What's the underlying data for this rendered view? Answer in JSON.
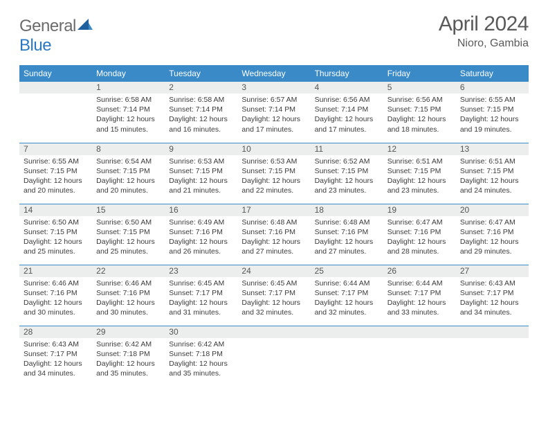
{
  "brand": {
    "word1": "General",
    "word2": "Blue"
  },
  "title": "April 2024",
  "location": "Nioro, Gambia",
  "colors": {
    "header_bg": "#3a8ac8",
    "header_text": "#ffffff",
    "daybar_bg": "#eceded",
    "row_divider": "#3a8ac8",
    "logo_gray": "#6b6b6b",
    "logo_blue": "#2b78c2",
    "title_gray": "#5a5a5a"
  },
  "weekdays": [
    "Sunday",
    "Monday",
    "Tuesday",
    "Wednesday",
    "Thursday",
    "Friday",
    "Saturday"
  ],
  "weeks": [
    [
      null,
      {
        "n": "1",
        "sr": "6:58 AM",
        "ss": "7:14 PM",
        "dl": "12 hours and 15 minutes."
      },
      {
        "n": "2",
        "sr": "6:58 AM",
        "ss": "7:14 PM",
        "dl": "12 hours and 16 minutes."
      },
      {
        "n": "3",
        "sr": "6:57 AM",
        "ss": "7:14 PM",
        "dl": "12 hours and 17 minutes."
      },
      {
        "n": "4",
        "sr": "6:56 AM",
        "ss": "7:14 PM",
        "dl": "12 hours and 17 minutes."
      },
      {
        "n": "5",
        "sr": "6:56 AM",
        "ss": "7:15 PM",
        "dl": "12 hours and 18 minutes."
      },
      {
        "n": "6",
        "sr": "6:55 AM",
        "ss": "7:15 PM",
        "dl": "12 hours and 19 minutes."
      }
    ],
    [
      {
        "n": "7",
        "sr": "6:55 AM",
        "ss": "7:15 PM",
        "dl": "12 hours and 20 minutes."
      },
      {
        "n": "8",
        "sr": "6:54 AM",
        "ss": "7:15 PM",
        "dl": "12 hours and 20 minutes."
      },
      {
        "n": "9",
        "sr": "6:53 AM",
        "ss": "7:15 PM",
        "dl": "12 hours and 21 minutes."
      },
      {
        "n": "10",
        "sr": "6:53 AM",
        "ss": "7:15 PM",
        "dl": "12 hours and 22 minutes."
      },
      {
        "n": "11",
        "sr": "6:52 AM",
        "ss": "7:15 PM",
        "dl": "12 hours and 23 minutes."
      },
      {
        "n": "12",
        "sr": "6:51 AM",
        "ss": "7:15 PM",
        "dl": "12 hours and 23 minutes."
      },
      {
        "n": "13",
        "sr": "6:51 AM",
        "ss": "7:15 PM",
        "dl": "12 hours and 24 minutes."
      }
    ],
    [
      {
        "n": "14",
        "sr": "6:50 AM",
        "ss": "7:15 PM",
        "dl": "12 hours and 25 minutes."
      },
      {
        "n": "15",
        "sr": "6:50 AM",
        "ss": "7:15 PM",
        "dl": "12 hours and 25 minutes."
      },
      {
        "n": "16",
        "sr": "6:49 AM",
        "ss": "7:16 PM",
        "dl": "12 hours and 26 minutes."
      },
      {
        "n": "17",
        "sr": "6:48 AM",
        "ss": "7:16 PM",
        "dl": "12 hours and 27 minutes."
      },
      {
        "n": "18",
        "sr": "6:48 AM",
        "ss": "7:16 PM",
        "dl": "12 hours and 27 minutes."
      },
      {
        "n": "19",
        "sr": "6:47 AM",
        "ss": "7:16 PM",
        "dl": "12 hours and 28 minutes."
      },
      {
        "n": "20",
        "sr": "6:47 AM",
        "ss": "7:16 PM",
        "dl": "12 hours and 29 minutes."
      }
    ],
    [
      {
        "n": "21",
        "sr": "6:46 AM",
        "ss": "7:16 PM",
        "dl": "12 hours and 30 minutes."
      },
      {
        "n": "22",
        "sr": "6:46 AM",
        "ss": "7:16 PM",
        "dl": "12 hours and 30 minutes."
      },
      {
        "n": "23",
        "sr": "6:45 AM",
        "ss": "7:17 PM",
        "dl": "12 hours and 31 minutes."
      },
      {
        "n": "24",
        "sr": "6:45 AM",
        "ss": "7:17 PM",
        "dl": "12 hours and 32 minutes."
      },
      {
        "n": "25",
        "sr": "6:44 AM",
        "ss": "7:17 PM",
        "dl": "12 hours and 32 minutes."
      },
      {
        "n": "26",
        "sr": "6:44 AM",
        "ss": "7:17 PM",
        "dl": "12 hours and 33 minutes."
      },
      {
        "n": "27",
        "sr": "6:43 AM",
        "ss": "7:17 PM",
        "dl": "12 hours and 34 minutes."
      }
    ],
    [
      {
        "n": "28",
        "sr": "6:43 AM",
        "ss": "7:17 PM",
        "dl": "12 hours and 34 minutes."
      },
      {
        "n": "29",
        "sr": "6:42 AM",
        "ss": "7:18 PM",
        "dl": "12 hours and 35 minutes."
      },
      {
        "n": "30",
        "sr": "6:42 AM",
        "ss": "7:18 PM",
        "dl": "12 hours and 35 minutes."
      },
      null,
      null,
      null,
      null
    ]
  ],
  "labels": {
    "sunrise": "Sunrise:",
    "sunset": "Sunset:",
    "daylight": "Daylight:"
  }
}
